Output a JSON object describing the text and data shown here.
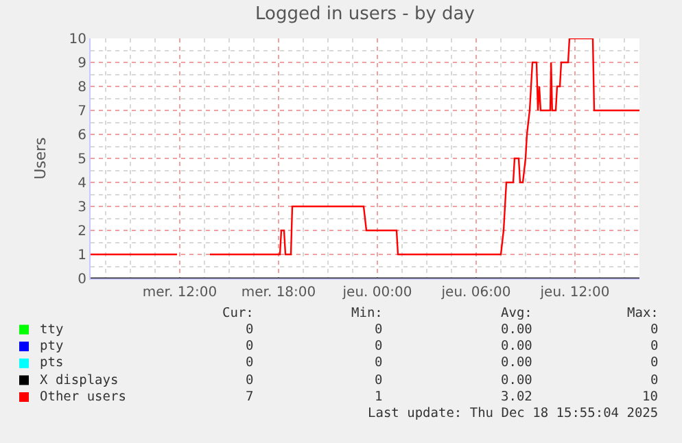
{
  "chart_data": {
    "type": "line",
    "title": "Logged in users - by day",
    "ylabel": "Users",
    "xlim": [
      "2025-12-17T06:35",
      "2025-12-18T15:55"
    ],
    "ylim": [
      0,
      10
    ],
    "xticks": [
      {
        "value": "2025-12-17T12:00",
        "label": "mer. 12:00"
      },
      {
        "value": "2025-12-17T18:00",
        "label": "mer. 18:00"
      },
      {
        "value": "2025-12-18T00:00",
        "label": "jeu. 00:00"
      },
      {
        "value": "2025-12-18T06:00",
        "label": "jeu. 06:00"
      },
      {
        "value": "2025-12-18T12:00",
        "label": "jeu. 12:00"
      }
    ],
    "yticks": [
      0,
      1,
      2,
      3,
      4,
      5,
      6,
      7,
      8,
      9,
      10
    ],
    "grid": true,
    "legend": "bottom",
    "marker": "none",
    "line_style": "solid",
    "series": [
      {
        "name": "tty",
        "color": "#00ff00"
      },
      {
        "name": "pty",
        "color": "#0000ff"
      },
      {
        "name": "pts",
        "color": "#00ffff"
      },
      {
        "name": "X displays",
        "color": "#000000",
        "x": [
          "2025-12-17T06:35",
          "2025-12-18T15:55"
        ],
        "values": [
          0,
          0
        ]
      },
      {
        "name": "Other users",
        "color": "#ff0000",
        "x": [
          "2025-12-17T06:35",
          "2025-12-17T11:50",
          "2025-12-17T12:48",
          "2025-12-17T13:50",
          "2025-12-17T18:05",
          "2025-12-17T18:10",
          "2025-12-17T18:20",
          "2025-12-17T18:25",
          "2025-12-17T18:45",
          "2025-12-17T18:50",
          "2025-12-17T23:10",
          "2025-12-17T23:20",
          "2025-12-18T01:10",
          "2025-12-18T01:15",
          "2025-12-18T07:30",
          "2025-12-18T07:40",
          "2025-12-18T07:50",
          "2025-12-18T08:15",
          "2025-12-18T08:20",
          "2025-12-18T08:35",
          "2025-12-18T08:40",
          "2025-12-18T08:50",
          "2025-12-18T09:00",
          "2025-12-18T09:05",
          "2025-12-18T09:15",
          "2025-12-18T09:25",
          "2025-12-18T09:40",
          "2025-12-18T09:45",
          "2025-12-18T09:50",
          "2025-12-18T09:55",
          "2025-12-18T10:30",
          "2025-12-18T10:33",
          "2025-12-18T10:37",
          "2025-12-18T10:50",
          "2025-12-18T10:55",
          "2025-12-18T11:05",
          "2025-12-18T11:10",
          "2025-12-18T11:35",
          "2025-12-18T11:40",
          "2025-12-18T13:05",
          "2025-12-18T13:10",
          "2025-12-18T15:55"
        ],
        "values": [
          1,
          1,
          null,
          1,
          1,
          2,
          2,
          1,
          1,
          3,
          3,
          2,
          2,
          1,
          1,
          2,
          4,
          4,
          5,
          5,
          4,
          4,
          5,
          6,
          7,
          9,
          9,
          7,
          8,
          7,
          7,
          9,
          7,
          7,
          8,
          8,
          9,
          9,
          10,
          10,
          7,
          7
        ]
      }
    ],
    "annotations": [
      "Cur:",
      "Min:",
      "Avg:",
      "Max:",
      "0",
      "0",
      "0.00",
      "0",
      "0",
      "0",
      "0.00",
      "0",
      "0",
      "0",
      "0.00",
      "0",
      "0",
      "0",
      "0.00",
      "0",
      "7",
      "1",
      "3.02",
      "10",
      "Last update: Thu Dec 18 15:55:04 2025"
    ]
  }
}
